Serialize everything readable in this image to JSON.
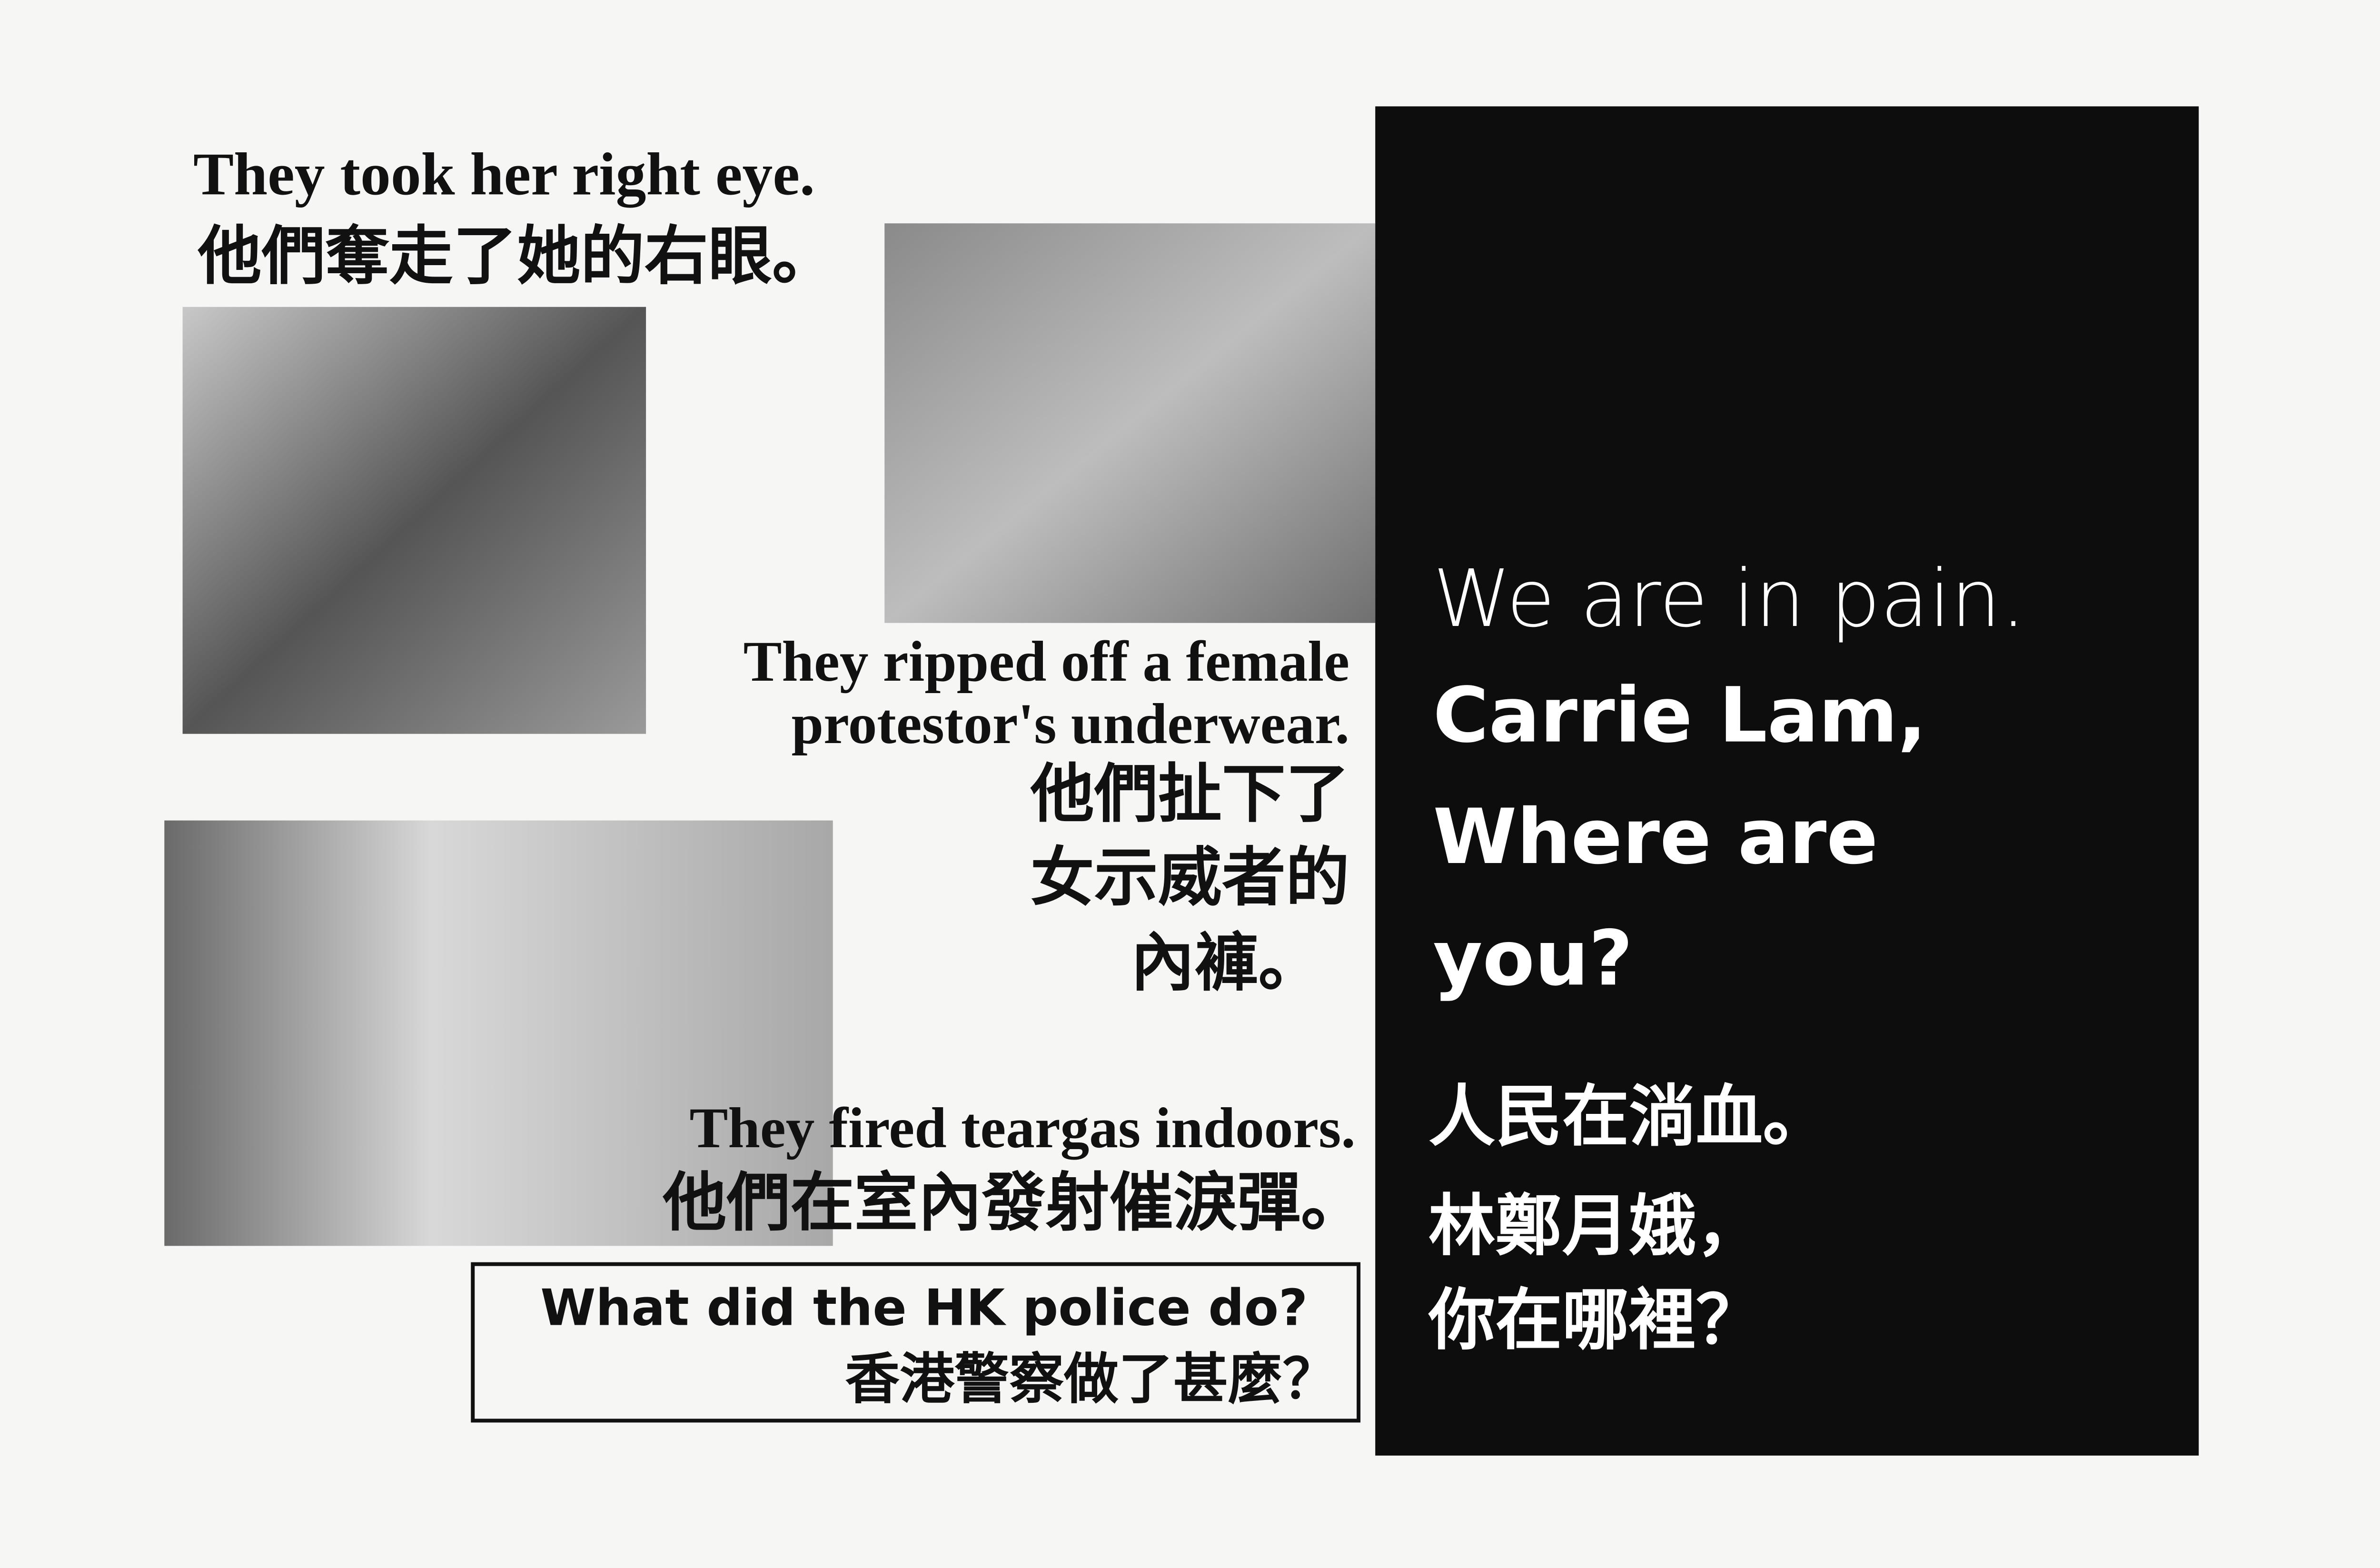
{
  "captions": [
    {
      "en": [
        "They took her right eye."
      ],
      "zh": [
        "他們奪走了她的右眼。"
      ]
    },
    {
      "en": [
        "They ripped off a female",
        "protestor's underwear."
      ],
      "zh": [
        "他們扯下了",
        "女示威者的",
        "內褲。"
      ]
    },
    {
      "en": [
        "They fired teargas indoors."
      ],
      "zh": [
        "他們在室內發射催淚彈。"
      ]
    }
  ],
  "box": {
    "en": "What did the HK police do?",
    "zh": "香港警察做了甚麼？"
  },
  "panel": {
    "intro": "We are in pain.",
    "bold_lines": [
      "Carrie Lam,",
      "Where are",
      "you?"
    ],
    "zh_lines": [
      "人民在淌血。",
      "林鄭月娥，",
      "你在哪裡？"
    ]
  }
}
